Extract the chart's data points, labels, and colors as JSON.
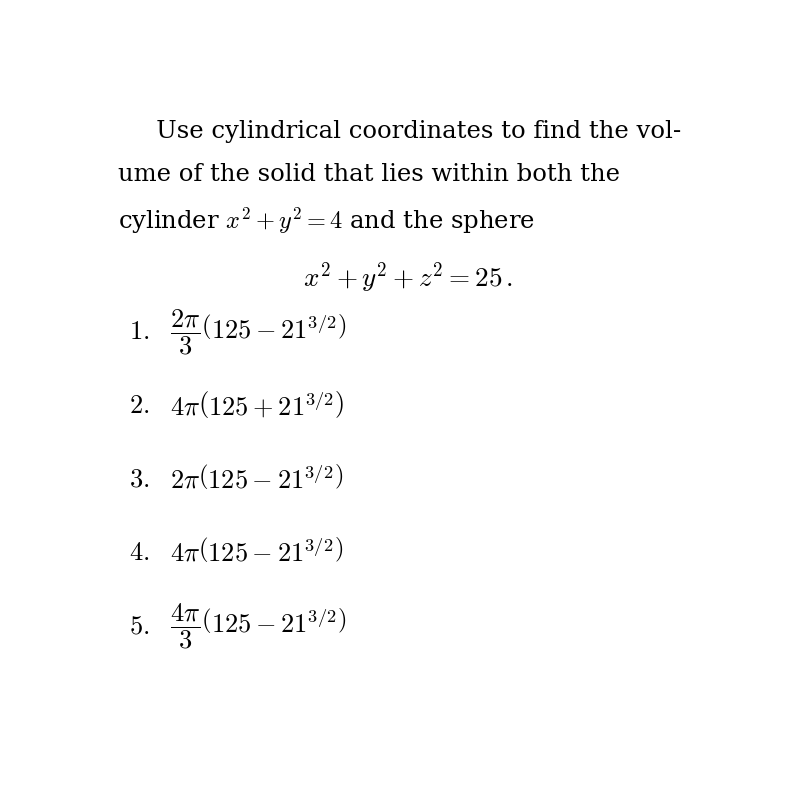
{
  "background_color": "#ffffff",
  "figsize": [
    7.96,
    8.1
  ],
  "dpi": 100,
  "text_color": "#000000",
  "question_fontsize": 17.5,
  "answer_fontsize": 19,
  "question_block": [
    {
      "text": "   Use cylindrical coordinates to find the vol-",
      "indent": 0
    },
    {
      "text": "ume of the solid that lies within both the",
      "indent": 0
    },
    {
      "text": "cylinder $x^2 + y^2 = 4$ and the sphere",
      "indent": 0
    }
  ],
  "question_eq": "$x^2 + y^2 + z^2 = 25\\,.$",
  "answers": [
    {
      "num": "\\mathbf{1.}",
      "bold": true,
      "tex": "\\dfrac{2\\pi}{3}\\left(125 - 21^{3/2}\\right)"
    },
    {
      "num": "\\mathbf{2.}",
      "bold": true,
      "tex": "4\\pi\\left(125 + 21^{3/2}\\right)"
    },
    {
      "num": "\\mathbf{3.}",
      "bold": true,
      "tex": "2\\pi\\left(125 - 21^{3/2}\\right)"
    },
    {
      "num": "4.",
      "bold": false,
      "tex": "4\\pi\\left(125 - 21^{3/2}\\right)"
    },
    {
      "num": "\\mathbf{5.}",
      "bold": true,
      "tex": "\\dfrac{4\\pi}{3}\\left(125 - 21^{3/2}\\right)"
    }
  ]
}
